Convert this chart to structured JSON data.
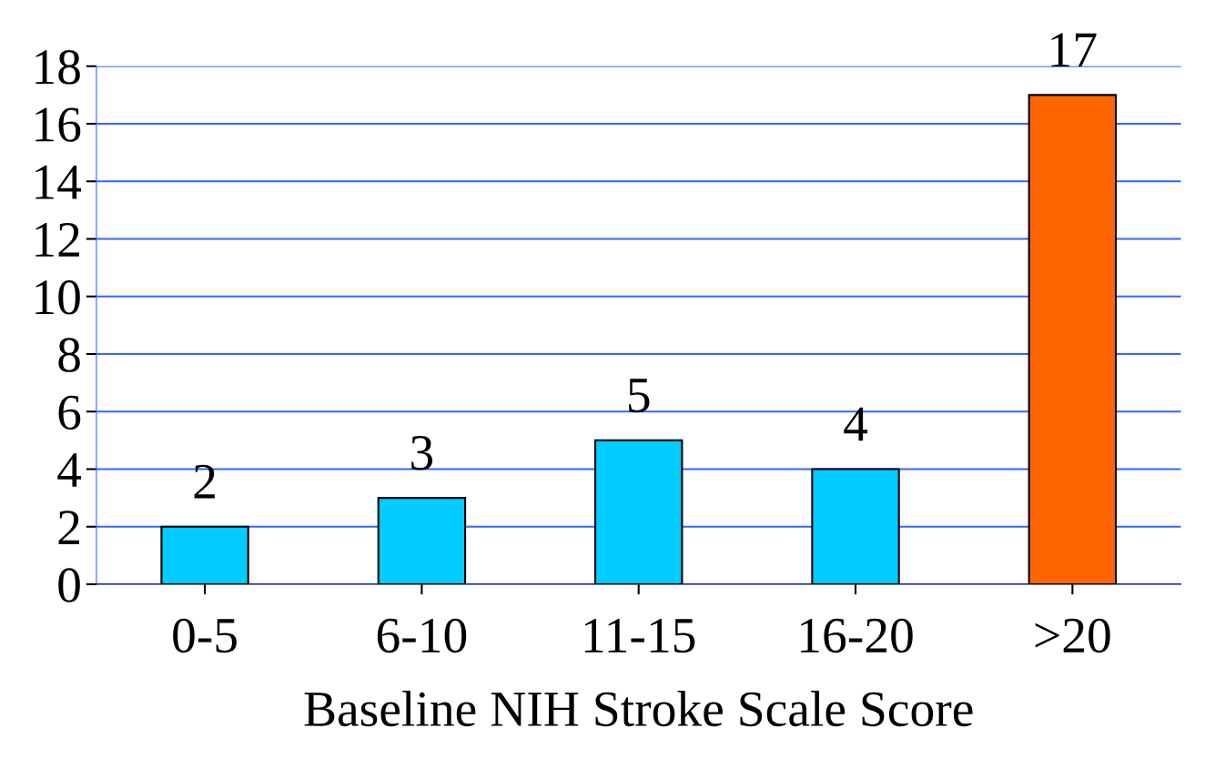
{
  "chart_data": {
    "type": "bar",
    "xlabel": "Baseline NIH Stroke Scale Score",
    "categories": [
      "0-5",
      "6-10",
      "11-15",
      "16-20",
      ">20"
    ],
    "values": [
      2,
      3,
      5,
      4,
      17
    ],
    "colors": [
      "#00ccff",
      "#00ccff",
      "#00ccff",
      "#00ccff",
      "#ff6600"
    ],
    "ylim": [
      0,
      18
    ],
    "yticks": [
      0,
      2,
      4,
      6,
      8,
      10,
      12,
      14,
      16,
      18
    ],
    "grid": "y",
    "data_labels": true
  }
}
